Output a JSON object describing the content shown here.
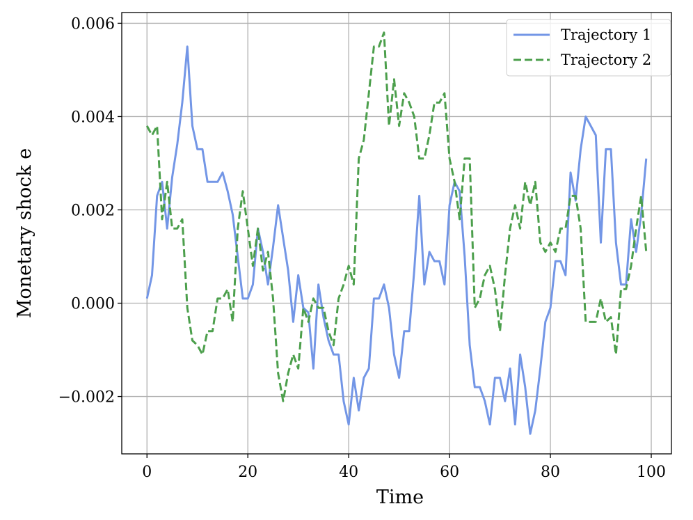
{
  "chart_data": {
    "type": "line",
    "title": "",
    "xlabel": "Time",
    "ylabel": "Monetary shock e",
    "xlim": [
      -5,
      104
    ],
    "ylim": [
      -0.00323,
      0.00623
    ],
    "xticks": [
      0,
      20,
      40,
      60,
      80,
      100
    ],
    "xtick_labels": [
      "0",
      "20",
      "40",
      "60",
      "80",
      "100"
    ],
    "yticks": [
      -0.002,
      0,
      0.002,
      0.004,
      0.006
    ],
    "ytick_labels": [
      "−0.002",
      "0.000",
      "0.002",
      "0.004",
      "0.006"
    ],
    "grid": true,
    "legend_position": "top-right",
    "x": [
      0,
      1,
      2,
      3,
      4,
      5,
      6,
      7,
      8,
      9,
      10,
      11,
      12,
      13,
      14,
      15,
      16,
      17,
      18,
      19,
      20,
      21,
      22,
      23,
      24,
      25,
      26,
      27,
      28,
      29,
      30,
      31,
      32,
      33,
      34,
      35,
      36,
      37,
      38,
      39,
      40,
      41,
      42,
      43,
      44,
      45,
      46,
      47,
      48,
      49,
      50,
      51,
      52,
      53,
      54,
      55,
      56,
      57,
      58,
      59,
      60,
      61,
      62,
      63,
      64,
      65,
      66,
      67,
      68,
      69,
      70,
      71,
      72,
      73,
      74,
      75,
      76,
      77,
      78,
      79,
      80,
      81,
      82,
      83,
      84,
      85,
      86,
      87,
      88,
      89,
      90,
      91,
      92,
      93,
      94,
      95,
      96,
      97,
      98,
      99
    ],
    "series": [
      {
        "name": "Trajectory 1",
        "color": "#7396e6",
        "dash": "solid",
        "values": [
          0.0001,
          0.0006,
          0.0023,
          0.0026,
          0.0016,
          0.0027,
          0.0034,
          0.0043,
          0.0055,
          0.0038,
          0.0033,
          0.0033,
          0.0026,
          0.0026,
          0.0026,
          0.0028,
          0.0024,
          0.0019,
          0.001,
          0.0001,
          0.0001,
          0.0004,
          0.0016,
          0.0011,
          0.0004,
          0.0012,
          0.0021,
          0.0014,
          0.0007,
          -0.0004,
          0.0006,
          -0.0001,
          -0.0002,
          -0.0014,
          0.0004,
          -0.0003,
          -0.0008,
          -0.0011,
          -0.0011,
          -0.0021,
          -0.0026,
          -0.0016,
          -0.0023,
          -0.0016,
          -0.0014,
          0.0001,
          0.0001,
          0.0004,
          -0.0001,
          -0.0011,
          -0.0016,
          -0.0006,
          -0.0006,
          0.0007,
          0.0023,
          0.0004,
          0.0011,
          0.0009,
          0.0009,
          0.0004,
          0.0021,
          0.0026,
          0.0024,
          0.001,
          -0.0009,
          -0.0018,
          -0.0018,
          -0.0021,
          -0.0026,
          -0.0016,
          -0.0016,
          -0.0021,
          -0.0014,
          -0.0026,
          -0.0011,
          -0.0018,
          -0.0028,
          -0.0023,
          -0.0014,
          -0.0004,
          -0.0001,
          0.0009,
          0.0009,
          0.0006,
          0.0028,
          0.0022,
          0.0033,
          0.004,
          0.0038,
          0.0036,
          0.0013,
          0.0033,
          0.0033,
          0.0013,
          0.0004,
          0.0004,
          0.0018,
          0.0011,
          0.0019,
          0.0031
        ]
      },
      {
        "name": "Trajectory 2",
        "color": "#4c9f4c",
        "dash": "dashed",
        "values": [
          0.0038,
          0.0036,
          0.0038,
          0.0018,
          0.0026,
          0.0016,
          0.0016,
          0.0018,
          -0.0001,
          -0.0008,
          -0.0009,
          -0.0011,
          -0.0006,
          -0.0006,
          0.0001,
          0.0001,
          0.0003,
          -0.0004,
          0.0016,
          0.0024,
          0.0016,
          0.0008,
          0.0016,
          0.0007,
          0.0011,
          0.0001,
          -0.0015,
          -0.0021,
          -0.0015,
          -0.0011,
          -0.0014,
          -0.0001,
          -0.0004,
          0.0001,
          -0.0001,
          -0.0001,
          -0.0006,
          -0.0009,
          0.0001,
          0.0004,
          0.0008,
          0.0004,
          0.0031,
          0.0035,
          0.0045,
          0.0055,
          0.0055,
          0.0058,
          0.0038,
          0.0048,
          0.0038,
          0.0045,
          0.0043,
          0.004,
          0.0031,
          0.0031,
          0.0036,
          0.0043,
          0.0043,
          0.0045,
          0.0031,
          0.0026,
          0.0018,
          0.0031,
          0.0031,
          -0.0001,
          0.0001,
          0.0006,
          0.0008,
          0.0003,
          -0.0006,
          0.0006,
          0.0016,
          0.0021,
          0.0016,
          0.0026,
          0.0021,
          0.0026,
          0.0013,
          0.0011,
          0.0013,
          0.0011,
          0.0016,
          0.0016,
          0.0023,
          0.0023,
          0.0016,
          -0.0004,
          -0.0004,
          -0.0004,
          0.0001,
          -0.0004,
          -0.0003,
          -0.0011,
          0.0003,
          0.0003,
          0.0008,
          0.0016,
          0.0023,
          0.0011
        ]
      }
    ]
  }
}
